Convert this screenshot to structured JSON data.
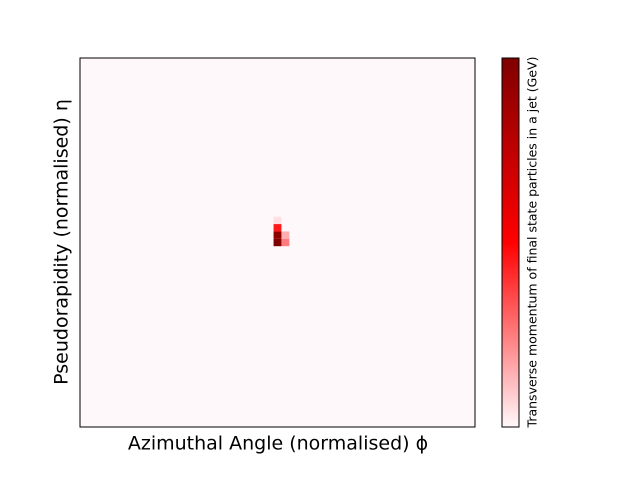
{
  "chart_data": {
    "type": "heatmap",
    "x_label": "Azimuthal Angle (normalised) ϕ",
    "y_label": "Pseudorapidity (normalised) η",
    "colorbar_label": "Transverse momentum of final state particles in a jet (GeV)",
    "xlim": [
      0,
      1
    ],
    "ylim": [
      0,
      1
    ],
    "zlim": [
      0,
      1
    ],
    "colormap": [
      "#fff8fb",
      "#ff0000",
      "#800000"
    ],
    "points": {
      "x": [
        0.5,
        0.5,
        0.5,
        0.5,
        0.52,
        0.52
      ],
      "y": [
        0.5,
        0.52,
        0.54,
        0.56,
        0.52,
        0.5
      ],
      "values": [
        1.0,
        0.95,
        0.45,
        0.05,
        0.15,
        0.25
      ]
    }
  }
}
